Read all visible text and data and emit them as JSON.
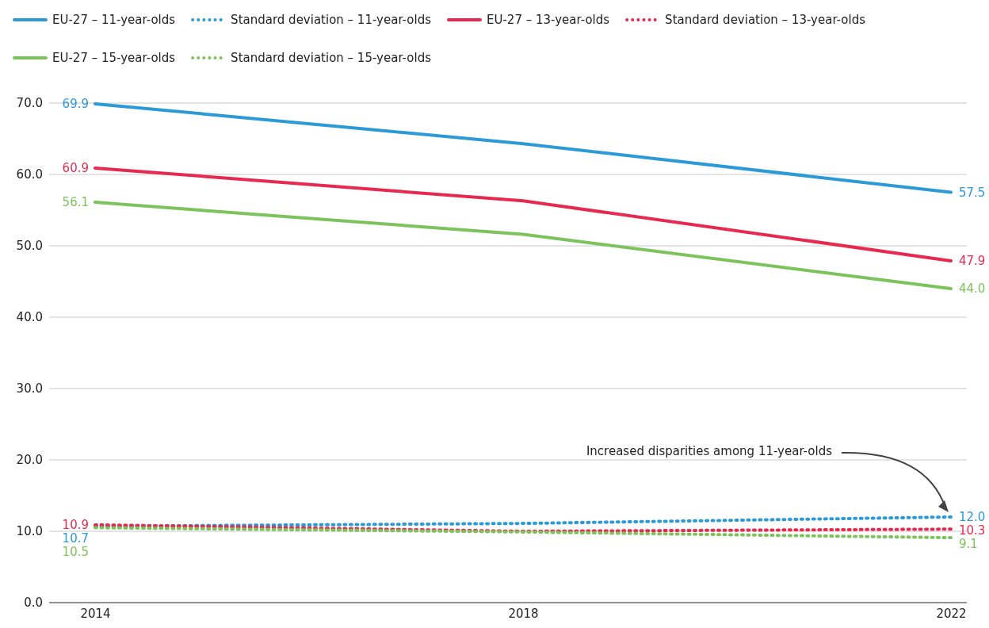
{
  "chart_data": {
    "type": "line",
    "categories": [
      "2014",
      "2018",
      "2022"
    ],
    "ylim": [
      0,
      70
    ],
    "yticks": [
      {
        "value": 0,
        "label": "0.0"
      },
      {
        "value": 10,
        "label": "10.0"
      },
      {
        "value": 20,
        "label": "20.0"
      },
      {
        "value": 30,
        "label": "30.0"
      },
      {
        "value": 40,
        "label": "40.0"
      },
      {
        "value": 50,
        "label": "50.0"
      },
      {
        "value": 60,
        "label": "60.0"
      },
      {
        "value": 70,
        "label": "70.0"
      }
    ],
    "grid": "y",
    "legend": "top",
    "series": [
      {
        "name": "EU-27 – 11-year-olds",
        "color": "#2b9ad6",
        "line_style": "solid",
        "values": [
          69.9,
          64.3,
          57.5
        ],
        "value_labels": [
          "69.9",
          null,
          "57.5"
        ]
      },
      {
        "name": "Standard deviation – 11-year-olds",
        "color": "#2b9ad6",
        "line_style": "dotted",
        "values": [
          10.7,
          11.1,
          12.0
        ],
        "value_labels": [
          "10.7",
          null,
          "12.0"
        ]
      },
      {
        "name": "EU-27 – 13-year-olds",
        "color": "#e8294f",
        "line_style": "solid",
        "values": [
          60.9,
          56.3,
          47.9
        ],
        "value_labels": [
          "60.9",
          null,
          "47.9"
        ]
      },
      {
        "name": "Standard deviation – 13-year-olds",
        "color": "#e8294f",
        "line_style": "dotted",
        "values": [
          10.9,
          10.0,
          10.3
        ],
        "value_labels": [
          "10.9",
          null,
          "10.3"
        ]
      },
      {
        "name": "EU-27 – 15-year-olds",
        "color": "#7cc35c",
        "line_style": "solid",
        "values": [
          56.1,
          51.6,
          44.0
        ],
        "value_labels": [
          "56.1",
          null,
          "44.0"
        ]
      },
      {
        "name": "Standard deviation – 15-year-olds",
        "color": "#7cc35c",
        "line_style": "dotted",
        "values": [
          10.5,
          9.9,
          9.1
        ],
        "value_labels": [
          "10.5",
          null,
          "9.1"
        ]
      }
    ],
    "annotations": [
      "Increased disparities among 11-year-olds"
    ]
  }
}
